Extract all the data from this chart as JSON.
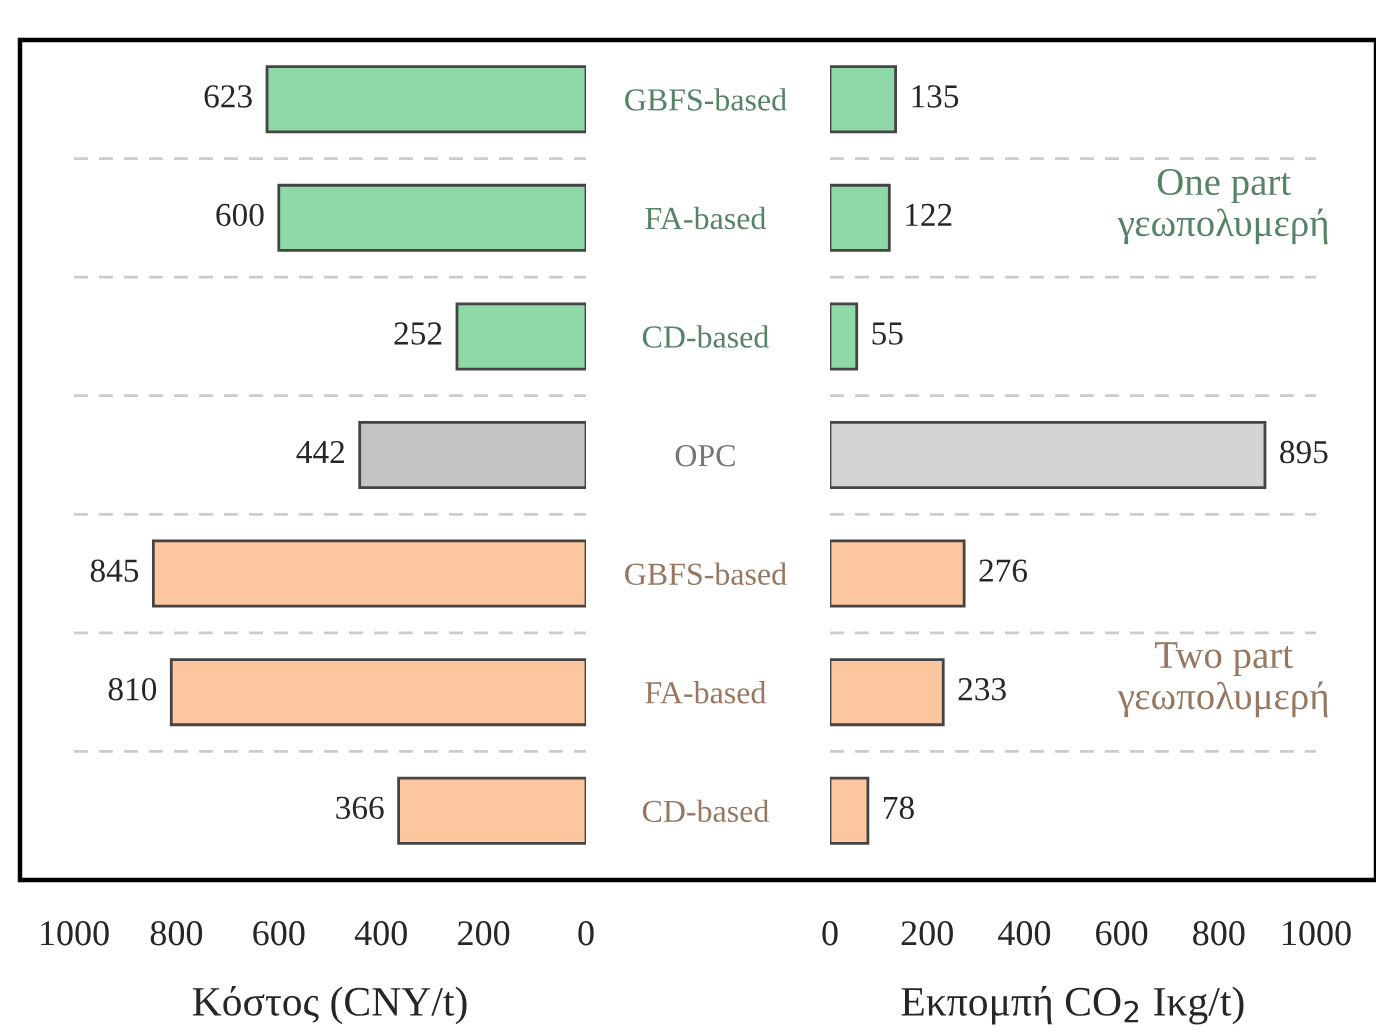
{
  "chart_data": [
    {
      "type": "bar",
      "orientation": "horizontal",
      "categories": [
        "GBFS-based",
        "FA-based",
        "CD-based",
        "OPC",
        "GBFS-based",
        "FA-based",
        "CD-based"
      ],
      "values": [
        623,
        600,
        252,
        442,
        845,
        810,
        366
      ],
      "colors": [
        "#8fd9a8",
        "#8fd9a8",
        "#8fd9a8",
        "#c4c4c4",
        "#fcc79e",
        "#fcc79e",
        "#fcc79e"
      ],
      "xlim": [
        1000,
        0
      ],
      "xticks": [
        1000,
        800,
        600,
        400,
        200,
        0
      ],
      "xlabel": "Κόστος (CNY/t)",
      "data_labels": true,
      "grid": "y"
    },
    {
      "type": "bar",
      "orientation": "horizontal",
      "categories": [
        null,
        null,
        null,
        null,
        null,
        null,
        null
      ],
      "values": [
        135,
        122,
        55,
        895,
        276,
        233,
        78
      ],
      "colors": [
        "#8fd9a8",
        "#8fd9a8",
        "#8fd9a8",
        "#d4d4d4",
        "#fcc79e",
        "#fcc79e",
        "#fcc79e"
      ],
      "xlim": [
        0,
        1000
      ],
      "xticks": [
        0,
        200,
        400,
        600,
        800,
        1000
      ],
      "xlabel": "Εκπομπή CO$_{2}$ Ικg/t)",
      "data_labels": true,
      "grid": "y",
      "tick_labels": "x",
      "annotations": [
        "One part\nγεωπολυμερή",
        "Two part\nγεωπολυμερή"
      ]
    }
  ]
}
